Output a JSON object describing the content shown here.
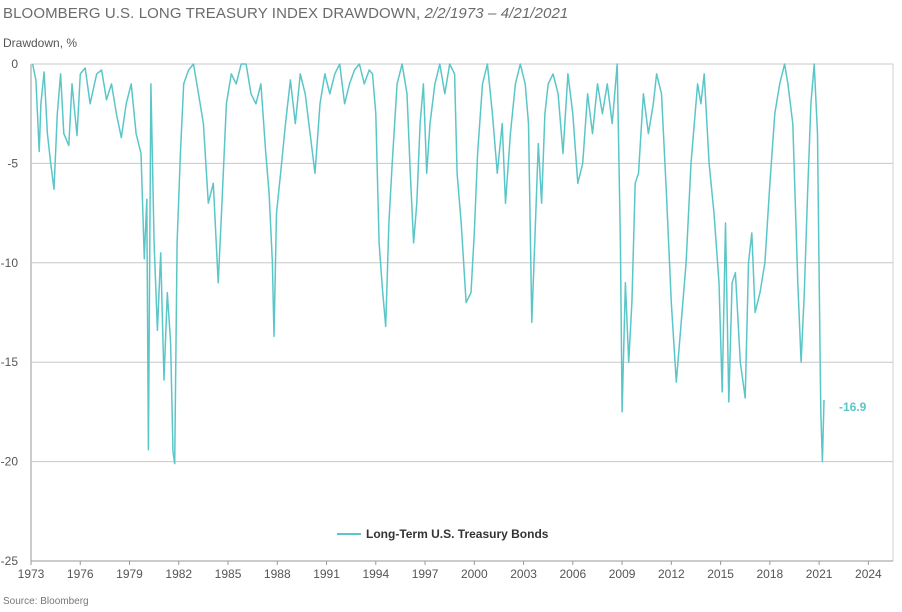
{
  "title": "BLOOMBERG U.S. LONG TREASURY INDEX DRAWDOWN,",
  "subtitle": "2/2/1973 – 4/21/2021",
  "source": "Source: Bloomberg",
  "chart_data": {
    "type": "line",
    "ylabel": "Drawdown, %",
    "xlabel": "",
    "xlim": [
      1973,
      2025.5
    ],
    "ylim": [
      -25,
      0
    ],
    "y_ticks": [
      0,
      -5,
      -10,
      -15,
      -20,
      -25
    ],
    "x_ticks": [
      "1973",
      "1976",
      "1979",
      "1982",
      "1985",
      "1988",
      "1991",
      "1994",
      "1997",
      "2000",
      "2003",
      "2006",
      "2009",
      "2012",
      "2015",
      "2018",
      "2021",
      "2024"
    ],
    "grid": "horizontal",
    "legend_position": "bottom-center",
    "end_annotation": "-16.9",
    "series": [
      {
        "name": "Long-Term U.S. Treasury Bonds",
        "color": "#5bc6c8",
        "x": [
          1973.1,
          1973.3,
          1973.5,
          1973.6,
          1973.8,
          1974.0,
          1974.2,
          1974.4,
          1974.6,
          1974.8,
          1975.0,
          1975.3,
          1975.5,
          1975.8,
          1976.0,
          1976.3,
          1976.6,
          1977.0,
          1977.3,
          1977.6,
          1977.9,
          1978.2,
          1978.5,
          1978.8,
          1979.1,
          1979.4,
          1979.7,
          1979.9,
          1980.05,
          1980.15,
          1980.3,
          1980.5,
          1980.7,
          1980.9,
          1981.1,
          1981.3,
          1981.5,
          1981.65,
          1981.75,
          1981.9,
          1982.1,
          1982.3,
          1982.6,
          1982.9,
          1983.2,
          1983.5,
          1983.8,
          1984.1,
          1984.4,
          1984.6,
          1984.9,
          1985.2,
          1985.5,
          1985.8,
          1986.1,
          1986.4,
          1986.7,
          1987.0,
          1987.3,
          1987.5,
          1987.7,
          1987.8,
          1987.95,
          1988.2,
          1988.5,
          1988.8,
          1989.1,
          1989.4,
          1989.7,
          1990.0,
          1990.3,
          1990.6,
          1990.9,
          1991.2,
          1991.5,
          1991.8,
          1992.1,
          1992.4,
          1992.7,
          1993.0,
          1993.3,
          1993.6,
          1993.8,
          1994.0,
          1994.2,
          1994.4,
          1994.6,
          1994.8,
          1995.0,
          1995.3,
          1995.6,
          1995.9,
          1996.1,
          1996.3,
          1996.5,
          1996.7,
          1996.9,
          1997.1,
          1997.3,
          1997.6,
          1997.9,
          1998.2,
          1998.5,
          1998.8,
          1998.95,
          1999.2,
          1999.5,
          1999.8,
          2000.0,
          2000.2,
          2000.5,
          2000.8,
          2001.1,
          2001.4,
          2001.7,
          2001.9,
          2002.2,
          2002.5,
          2002.8,
          2003.1,
          2003.3,
          2003.5,
          2003.7,
          2003.9,
          2004.1,
          2004.3,
          2004.5,
          2004.8,
          2005.1,
          2005.4,
          2005.7,
          2006.0,
          2006.3,
          2006.6,
          2006.9,
          2007.2,
          2007.5,
          2007.8,
          2008.1,
          2008.4,
          2008.7,
          2008.9,
          2009.0,
          2009.2,
          2009.4,
          2009.6,
          2009.8,
          2010.0,
          2010.3,
          2010.6,
          2010.9,
          2011.1,
          2011.4,
          2011.7,
          2012.0,
          2012.3,
          2012.6,
          2012.9,
          2013.2,
          2013.4,
          2013.6,
          2013.8,
          2014.0,
          2014.3,
          2014.6,
          2014.9,
          2015.1,
          2015.3,
          2015.5,
          2015.7,
          2015.9,
          2016.2,
          2016.5,
          2016.7,
          2016.9,
          2017.1,
          2017.4,
          2017.7,
          2018.0,
          2018.3,
          2018.6,
          2018.9,
          2019.1,
          2019.4,
          2019.7,
          2019.9,
          2020.1,
          2020.3,
          2020.5,
          2020.7,
          2020.9,
          2021.0,
          2021.1,
          2021.2,
          2021.3
        ],
        "values": [
          0,
          -0.8,
          -4.4,
          -2.0,
          -0.4,
          -3.5,
          -5.0,
          -6.3,
          -2.5,
          -0.5,
          -3.5,
          -4.1,
          -1.0,
          -3.6,
          -0.5,
          -0.2,
          -2.0,
          -0.5,
          -0.3,
          -1.8,
          -1.0,
          -2.5,
          -3.7,
          -2.0,
          -1.0,
          -3.5,
          -4.5,
          -9.8,
          -6.8,
          -19.4,
          -1.0,
          -9.0,
          -13.4,
          -9.5,
          -15.9,
          -11.5,
          -14.0,
          -19.5,
          -20.1,
          -9.0,
          -4.5,
          -1.0,
          -0.3,
          0,
          -1.5,
          -3.0,
          -7.0,
          -6.0,
          -11.0,
          -7.5,
          -2.0,
          -0.5,
          -1.0,
          0,
          0,
          -1.5,
          -2.0,
          -1.0,
          -4.5,
          -6.5,
          -10.0,
          -13.7,
          -7.5,
          -5.5,
          -3.0,
          -0.8,
          -3.0,
          -0.5,
          -1.5,
          -3.5,
          -5.5,
          -2.0,
          -0.5,
          -1.5,
          -0.5,
          0,
          -2.0,
          -1.0,
          -0.3,
          0,
          -1.0,
          -0.3,
          -0.5,
          -2.5,
          -9.0,
          -11.3,
          -13.2,
          -8.0,
          -5.0,
          -1.0,
          0,
          -1.5,
          -5.5,
          -9.0,
          -7.0,
          -3.0,
          -1.0,
          -5.5,
          -3.0,
          -1.0,
          0,
          -1.5,
          0,
          -0.5,
          -5.5,
          -8.0,
          -12.0,
          -11.5,
          -8.5,
          -4.5,
          -1.0,
          0,
          -2.5,
          -5.5,
          -3.0,
          -7.0,
          -3.5,
          -1.0,
          0,
          -1.0,
          -3.0,
          -13.0,
          -8.5,
          -4.0,
          -7.0,
          -2.5,
          -1.0,
          -0.5,
          -1.5,
          -4.5,
          -0.5,
          -2.5,
          -6.0,
          -5.0,
          -1.5,
          -3.5,
          -1.0,
          -2.5,
          -1.0,
          -3.0,
          0,
          -9.0,
          -17.5,
          -11.0,
          -15.0,
          -12.0,
          -6.0,
          -5.5,
          -1.5,
          -3.5,
          -2.0,
          -0.5,
          -1.5,
          -6.5,
          -12.0,
          -16.0,
          -13.0,
          -10.0,
          -5.0,
          -3.0,
          -1.0,
          -2.0,
          -0.5,
          -5.0,
          -7.5,
          -11.0,
          -16.5,
          -8.0,
          -17.0,
          -11.0,
          -10.5,
          -15.0,
          -16.8,
          -10.0,
          -8.5,
          -12.5,
          -11.5,
          -10.0,
          -6.0,
          -2.5,
          -1.0,
          0,
          -1.0,
          -3.0,
          -11.0,
          -15.0,
          -11.5,
          -6.5,
          -2.0,
          0,
          -3.5,
          -10.5,
          -17.5,
          -20.0,
          -16.9
        ]
      }
    ]
  }
}
